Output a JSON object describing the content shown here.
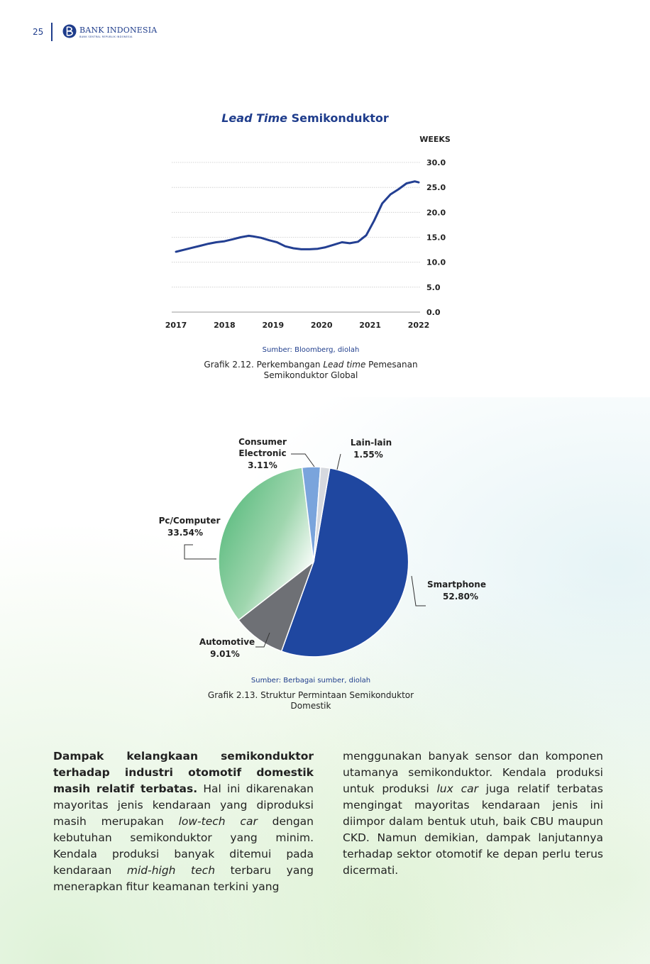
{
  "header": {
    "page_number": "25",
    "logo_text": "BANK INDONESIA",
    "logo_subtext": "BANK SENTRAL REPUBLIK INDONESIA"
  },
  "colors": {
    "primary_blue": "#1f3d8c",
    "line_blue": "#233f92",
    "smartphone_blue": "#1f47a0",
    "automotive_gray": "#6e7075",
    "pc_green": "#6cc489",
    "consumer_blue": "#7aa4dc",
    "lain_gray": "#d6d9df"
  },
  "chart1": {
    "title_italic": "Lead Time",
    "title_rest": " Semikonduktor",
    "source": "Sumber: Bloomberg, diolah",
    "caption_line1_pre": "Grafik 2.12. Perkembangan ",
    "caption_line1_italic": "Lead time",
    "caption_line1_post": " Pemesanan",
    "caption_line2": "Semikonduktor Global"
  },
  "chart2": {
    "source": "Sumber: Berbagai sumber, diolah",
    "caption_line1": "Grafik 2.13. Struktur Permintaan Semikonduktor",
    "caption_line2": "Domestik"
  },
  "chart_data": [
    {
      "type": "line",
      "title": "Lead Time Semikonduktor",
      "ylabel": "WEEKS",
      "ylim": [
        0,
        30
      ],
      "yticks": [
        "0.0",
        "5.0",
        "10.0",
        "15.0",
        "20.0",
        "25.0",
        "30.0"
      ],
      "xticks": [
        "2017",
        "2018",
        "2019",
        "2020",
        "2021",
        "2022"
      ],
      "grid": true,
      "series": [
        {
          "x": [
            2017.0,
            2017.17,
            2017.33,
            2017.5,
            2017.67,
            2017.83,
            2018.0,
            2018.17,
            2018.33,
            2018.5,
            2018.58,
            2018.75,
            2018.92,
            2019.08,
            2019.25,
            2019.42,
            2019.58,
            2019.75,
            2019.92,
            2020.08,
            2020.25,
            2020.42,
            2020.58,
            2020.75,
            2020.92,
            2021.08,
            2021.25,
            2021.42,
            2021.58,
            2021.75,
            2021.92,
            2022.0
          ],
          "y": [
            12.1,
            12.5,
            12.9,
            13.3,
            13.7,
            14.0,
            14.2,
            14.6,
            15.0,
            15.3,
            15.2,
            14.9,
            14.4,
            14.0,
            13.2,
            12.8,
            12.6,
            12.6,
            12.7,
            13.0,
            13.5,
            14.0,
            13.8,
            14.1,
            15.4,
            18.3,
            21.8,
            23.6,
            24.6,
            25.8,
            26.2,
            26.0
          ]
        }
      ]
    },
    {
      "type": "pie",
      "slices": [
        {
          "label": "Smartphone",
          "value": 52.8,
          "value_label": "52.80%"
        },
        {
          "label": "Automotive",
          "value": 9.01,
          "value_label": "9.01%"
        },
        {
          "label": "Pc/Computer",
          "value": 33.54,
          "value_label": "33.54%"
        },
        {
          "label": "Consumer Electronic",
          "label_line1": "Consumer",
          "label_line2": "Electronic",
          "value": 3.11,
          "value_label": "3.11%"
        },
        {
          "label": "Lain-lain",
          "value": 1.55,
          "value_label": "1.55%"
        }
      ]
    }
  ],
  "text": {
    "left": {
      "bold": "Dampak kelangkaan semikonduktor terhadap industri otomotif domestik masih relatif terbatas.",
      "t1": " Hal ini dikarenakan mayoritas jenis kendaraan yang diproduksi masih merupakan ",
      "i1": "low-tech car",
      "t2": " dengan kebutuhan semikonduktor yang minim. Kendala produksi banyak ditemui pada kendaraan ",
      "i2": "mid-high tech",
      "t3": " terbaru yang menerapkan fitur keamanan terkini yang"
    },
    "right": {
      "t1": "menggunakan banyak sensor dan komponen utamanya semikonduktor. Kendala produksi untuk produksi ",
      "i1": "lux car",
      "t2": " juga relatif terbatas mengingat mayoritas kendaraan jenis ini diimpor dalam bentuk utuh, baik CBU maupun CKD. Namun demikian, dampak lanjutannya terhadap sektor otomotif ke depan perlu terus dicermati."
    }
  }
}
